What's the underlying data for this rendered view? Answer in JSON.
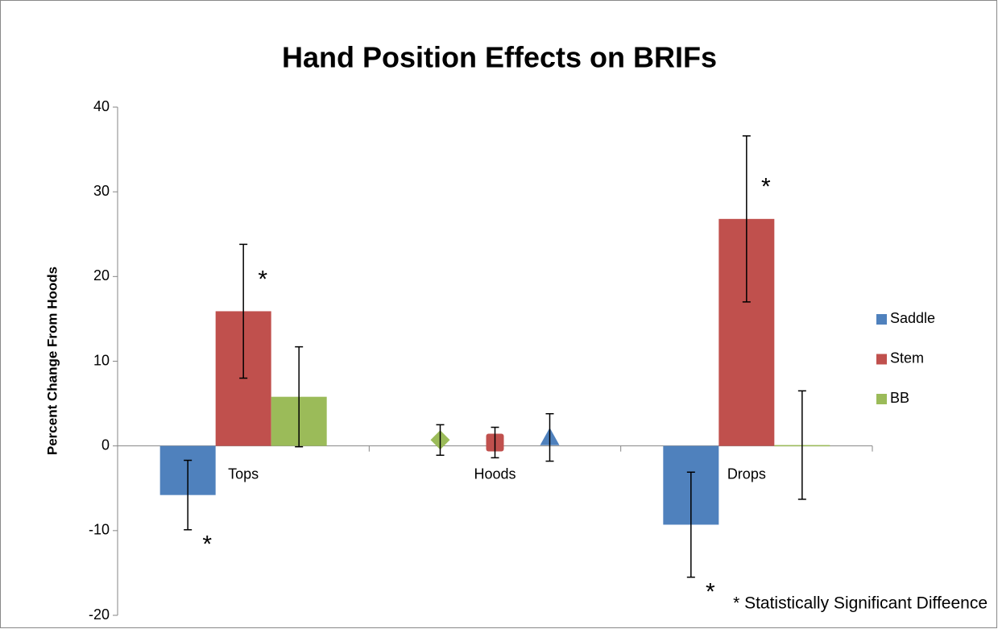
{
  "chart_data": {
    "type": "bar",
    "title": "Hand Position Effects on BRIFs",
    "y_label": "Percent Change From Hoods",
    "categories": [
      "Tops",
      "Hoods",
      "Drops"
    ],
    "series": [
      {
        "name": "Saddle",
        "color": "#4f81bd",
        "values": [
          -5.8,
          1.0,
          -9.3
        ],
        "errors": [
          4.1,
          2.8,
          6.2
        ],
        "sig_labels": [
          "*",
          null,
          "*"
        ]
      },
      {
        "name": "Stem",
        "color": "#c0504d",
        "values": [
          15.9,
          0.4,
          26.8
        ],
        "errors": [
          7.9,
          1.8,
          9.8
        ],
        "sig_labels": [
          "*",
          null,
          "*"
        ]
      },
      {
        "name": "BB",
        "color": "#9bbb59",
        "values": [
          5.8,
          0.7,
          0.1
        ],
        "errors": [
          5.9,
          1.8,
          6.4
        ],
        "sig_labels": [
          null,
          null,
          null
        ]
      }
    ],
    "ylim": [
      -20,
      40
    ],
    "yticks": [
      -20,
      -10,
      0,
      10,
      20,
      30,
      40
    ],
    "legend": "right",
    "footnote": "* Statistically Significant Diffeence"
  }
}
